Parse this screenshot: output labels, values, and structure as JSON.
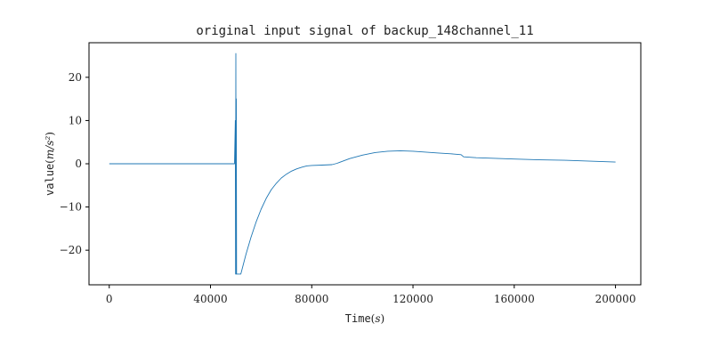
{
  "chart_data": {
    "type": "line",
    "title": "original input signal of backup_148channel_11",
    "xlabel": {
      "text": "Time",
      "unit": "s"
    },
    "ylabel": {
      "text": "value",
      "unit": "m/s²"
    },
    "xlim": [
      -8000,
      210000
    ],
    "ylim": [
      -28,
      28
    ],
    "xticks": [
      0,
      40000,
      80000,
      120000,
      160000,
      200000
    ],
    "yticks": [
      -20,
      -10,
      0,
      10,
      20
    ],
    "grid": false,
    "legend": "none",
    "series": [
      {
        "color": "#1f77b4",
        "x": [
          0,
          10000,
          20000,
          30000,
          40000,
          49500,
          49800,
          49900,
          50000,
          50100,
          50200,
          50300,
          50500,
          51000,
          52000,
          54000,
          56000,
          58000,
          60000,
          62000,
          64000,
          66000,
          68000,
          70000,
          72000,
          74000,
          76000,
          78000,
          80000,
          84000,
          88000,
          90000,
          95000,
          100000,
          105000,
          110000,
          115000,
          120000,
          125000,
          130000,
          135000,
          139000,
          140000,
          145000,
          150000,
          160000,
          170000,
          180000,
          190000,
          200000
        ],
        "y": [
          0,
          0,
          0,
          0,
          0,
          0,
          10,
          -25.5,
          25.5,
          -25.5,
          15,
          -25.5,
          -25.5,
          -25.5,
          -25.5,
          -21,
          -17,
          -13.5,
          -10.5,
          -8,
          -6,
          -4.5,
          -3.3,
          -2.4,
          -1.7,
          -1.2,
          -0.8,
          -0.5,
          -0.4,
          -0.3,
          -0.2,
          0.1,
          1.2,
          2.0,
          2.6,
          2.9,
          3.0,
          2.9,
          2.7,
          2.5,
          2.3,
          2.1,
          1.6,
          1.4,
          1.3,
          1.1,
          0.9,
          0.8,
          0.6,
          0.4
        ]
      }
    ]
  }
}
